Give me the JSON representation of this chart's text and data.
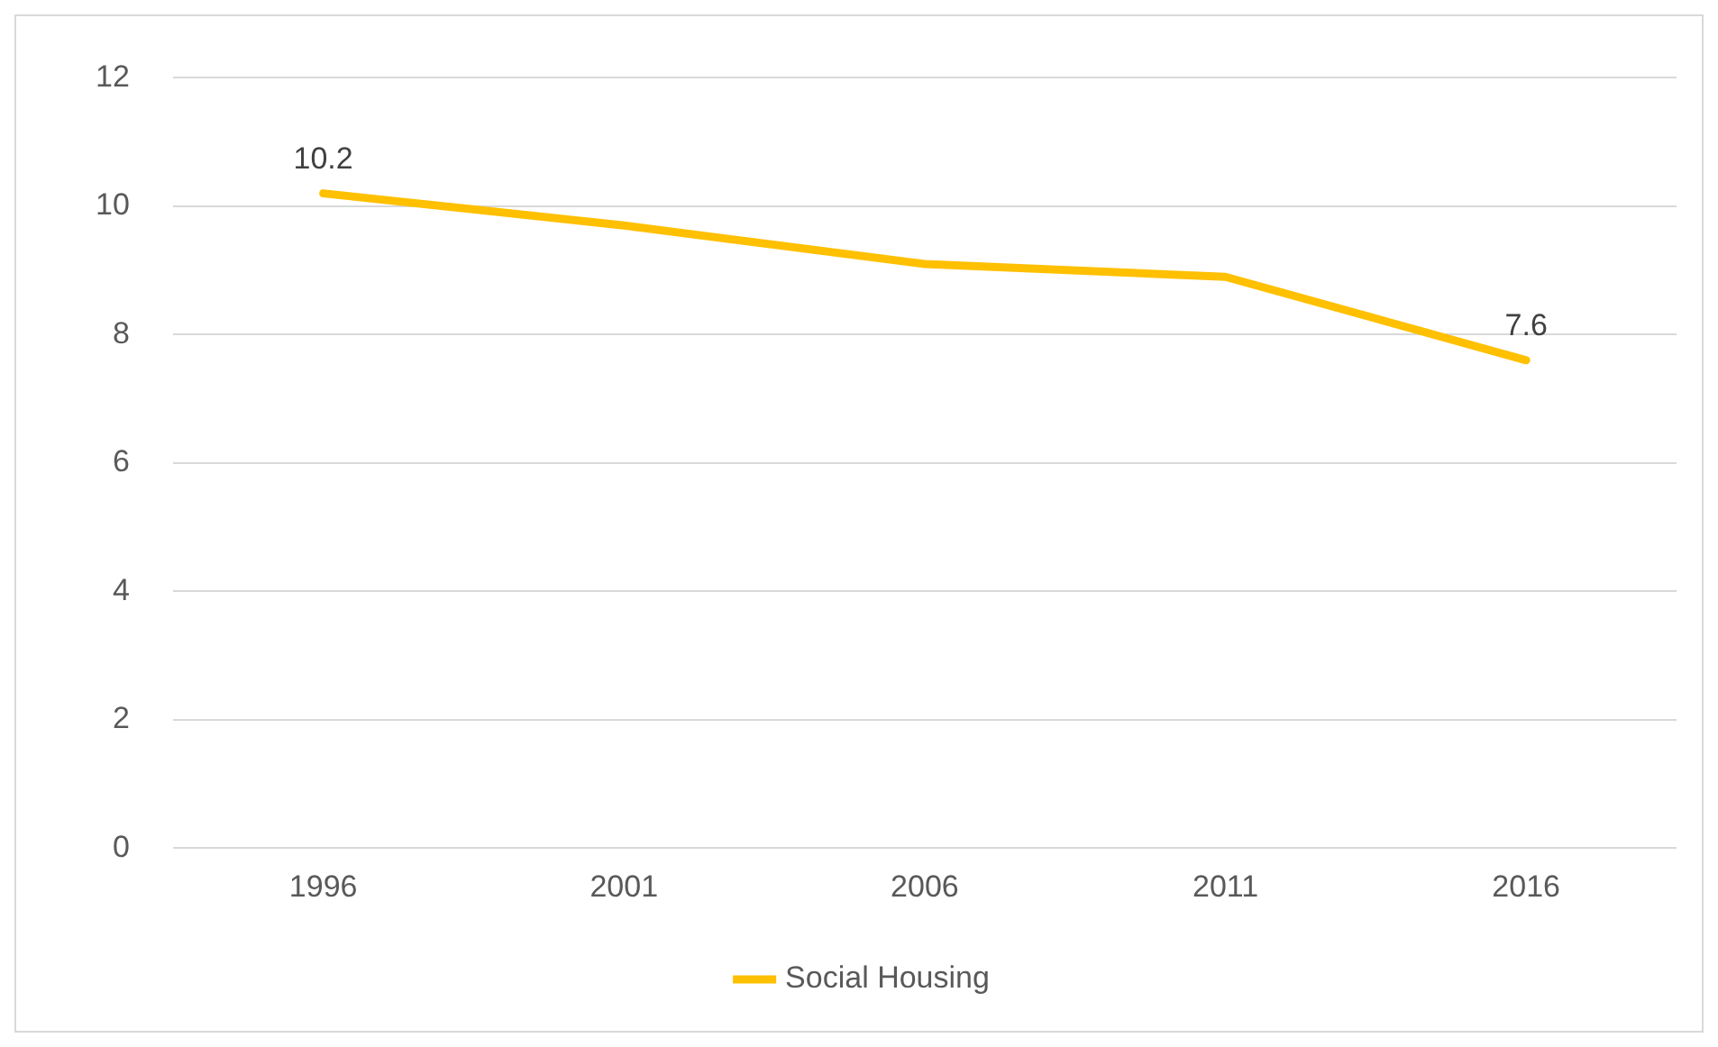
{
  "chart_data": {
    "type": "line",
    "categories": [
      "1996",
      "2001",
      "2006",
      "2011",
      "2016"
    ],
    "series": [
      {
        "name": "Social Housing",
        "color": "#ffc000",
        "values": [
          10.2,
          9.7,
          9.1,
          8.9,
          7.6
        ],
        "value_labels": [
          "10.2",
          null,
          null,
          null,
          "7.6"
        ]
      }
    ],
    "ylim": [
      0,
      12
    ],
    "yticks": [
      0,
      2,
      4,
      6,
      8,
      10,
      12
    ],
    "grid": "y",
    "legend": "bottom",
    "marker": "none",
    "line_style": "solid"
  }
}
